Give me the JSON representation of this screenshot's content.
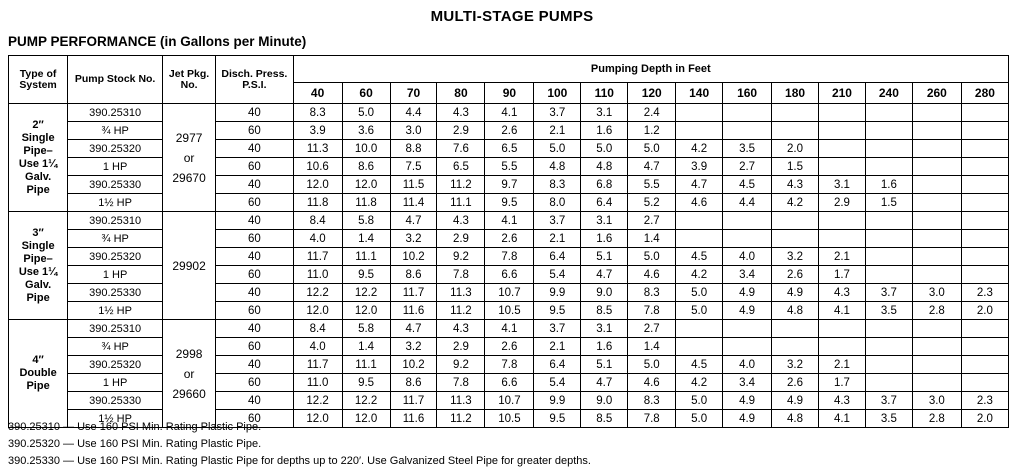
{
  "title": "MULTI-STAGE PUMPS",
  "subtitle": "PUMP PERFORMANCE (in Gallons per Minute)",
  "headers": {
    "type": "Type of System",
    "stock": "Pump Stock No.",
    "jet": "Jet Pkg. No.",
    "disch": "Disch. Press. P.S.I.",
    "depth_title": "Pumping Depth in Feet"
  },
  "depths": [
    "40",
    "60",
    "70",
    "80",
    "90",
    "100",
    "110",
    "120",
    "140",
    "160",
    "180",
    "210",
    "240",
    "260",
    "280"
  ],
  "groups": [
    {
      "system": [
        "2″",
        "Single",
        "Pipe–",
        "Use 1¼",
        "Galv.",
        "Pipe"
      ],
      "jet": [
        "2977",
        "or",
        "29670"
      ],
      "pumps": [
        {
          "stock": "390.25310",
          "hp": "¾ HP",
          "rows": [
            {
              "psi": "40",
              "values": [
                "8.3",
                "5.0",
                "4.4",
                "4.3",
                "4.1",
                "3.7",
                "3.1",
                "2.4",
                "",
                "",
                "",
                "",
                "",
                "",
                ""
              ]
            },
            {
              "psi": "60",
              "values": [
                "3.9",
                "3.6",
                "3.0",
                "2.9",
                "2.6",
                "2.1",
                "1.6",
                "1.2",
                "",
                "",
                "",
                "",
                "",
                "",
                ""
              ]
            }
          ]
        },
        {
          "stock": "390.25320",
          "hp": "1 HP",
          "rows": [
            {
              "psi": "40",
              "values": [
                "11.3",
                "10.0",
                "8.8",
                "7.6",
                "6.5",
                "5.0",
                "5.0",
                "5.0",
                "4.2",
                "3.5",
                "2.0",
                "",
                "",
                "",
                ""
              ]
            },
            {
              "psi": "60",
              "values": [
                "10.6",
                "8.6",
                "7.5",
                "6.5",
                "5.5",
                "4.8",
                "4.8",
                "4.7",
                "3.9",
                "2.7",
                "1.5",
                "",
                "",
                "",
                ""
              ]
            }
          ]
        },
        {
          "stock": "390.25330",
          "hp": "1½ HP",
          "rows": [
            {
              "psi": "40",
              "values": [
                "12.0",
                "12.0",
                "11.5",
                "11.2",
                "9.7",
                "8.3",
                "6.8",
                "5.5",
                "4.7",
                "4.5",
                "4.3",
                "3.1",
                "1.6",
                "",
                ""
              ]
            },
            {
              "psi": "60",
              "values": [
                "11.8",
                "11.8",
                "11.4",
                "11.1",
                "9.5",
                "8.0",
                "6.4",
                "5.2",
                "4.6",
                "4.4",
                "4.2",
                "2.9",
                "1.5",
                "",
                ""
              ]
            }
          ]
        }
      ]
    },
    {
      "system": [
        "3″",
        "Single",
        "Pipe–",
        "Use 1¼",
        "Galv.",
        "Pipe"
      ],
      "jet": [
        "29902"
      ],
      "pumps": [
        {
          "stock": "390.25310",
          "hp": "¾ HP",
          "rows": [
            {
              "psi": "40",
              "values": [
                "8.4",
                "5.8",
                "4.7",
                "4.3",
                "4.1",
                "3.7",
                "3.1",
                "2.7",
                "",
                "",
                "",
                "",
                "",
                "",
                ""
              ]
            },
            {
              "psi": "60",
              "values": [
                "4.0",
                "1.4",
                "3.2",
                "2.9",
                "2.6",
                "2.1",
                "1.6",
                "1.4",
                "",
                "",
                "",
                "",
                "",
                "",
                ""
              ]
            }
          ]
        },
        {
          "stock": "390.25320",
          "hp": "1 HP",
          "rows": [
            {
              "psi": "40",
              "values": [
                "11.7",
                "11.1",
                "10.2",
                "9.2",
                "7.8",
                "6.4",
                "5.1",
                "5.0",
                "4.5",
                "4.0",
                "3.2",
                "2.1",
                "",
                "",
                ""
              ]
            },
            {
              "psi": "60",
              "values": [
                "11.0",
                "9.5",
                "8.6",
                "7.8",
                "6.6",
                "5.4",
                "4.7",
                "4.6",
                "4.2",
                "3.4",
                "2.6",
                "1.7",
                "",
                "",
                ""
              ]
            }
          ]
        },
        {
          "stock": "390.25330",
          "hp": "1½ HP",
          "rows": [
            {
              "psi": "40",
              "values": [
                "12.2",
                "12.2",
                "11.7",
                "11.3",
                "10.7",
                "9.9",
                "9.0",
                "8.3",
                "5.0",
                "4.9",
                "4.9",
                "4.3",
                "3.7",
                "3.0",
                "2.3"
              ]
            },
            {
              "psi": "60",
              "values": [
                "12.0",
                "12.0",
                "11.6",
                "11.2",
                "10.5",
                "9.5",
                "8.5",
                "7.8",
                "5.0",
                "4.9",
                "4.8",
                "4.1",
                "3.5",
                "2.8",
                "2.0"
              ]
            }
          ]
        }
      ]
    },
    {
      "system": [
        "4″",
        "Double",
        "Pipe"
      ],
      "jet": [
        "2998",
        "or",
        "29660"
      ],
      "pumps": [
        {
          "stock": "390.25310",
          "hp": "¾ HP",
          "rows": [
            {
              "psi": "40",
              "values": [
                "8.4",
                "5.8",
                "4.7",
                "4.3",
                "4.1",
                "3.7",
                "3.1",
                "2.7",
                "",
                "",
                "",
                "",
                "",
                "",
                ""
              ]
            },
            {
              "psi": "60",
              "values": [
                "4.0",
                "1.4",
                "3.2",
                "2.9",
                "2.6",
                "2.1",
                "1.6",
                "1.4",
                "",
                "",
                "",
                "",
                "",
                "",
                ""
              ]
            }
          ]
        },
        {
          "stock": "390.25320",
          "hp": "1 HP",
          "rows": [
            {
              "psi": "40",
              "values": [
                "11.7",
                "11.1",
                "10.2",
                "9.2",
                "7.8",
                "6.4",
                "5.1",
                "5.0",
                "4.5",
                "4.0",
                "3.2",
                "2.1",
                "",
                "",
                ""
              ]
            },
            {
              "psi": "60",
              "values": [
                "11.0",
                "9.5",
                "8.6",
                "7.8",
                "6.6",
                "5.4",
                "4.7",
                "4.6",
                "4.2",
                "3.4",
                "2.6",
                "1.7",
                "",
                "",
                ""
              ]
            }
          ]
        },
        {
          "stock": "390.25330",
          "hp": "1½ HP",
          "rows": [
            {
              "psi": "40",
              "values": [
                "12.2",
                "12.2",
                "11.7",
                "11.3",
                "10.7",
                "9.9",
                "9.0",
                "8.3",
                "5.0",
                "4.9",
                "4.9",
                "4.3",
                "3.7",
                "3.0",
                "2.3"
              ]
            },
            {
              "psi": "60",
              "values": [
                "12.0",
                "12.0",
                "11.6",
                "11.2",
                "10.5",
                "9.5",
                "8.5",
                "7.8",
                "5.0",
                "4.9",
                "4.8",
                "4.1",
                "3.5",
                "2.8",
                "2.0"
              ]
            }
          ]
        }
      ]
    }
  ],
  "notes": [
    "390.25310 — Use 160 PSI Min. Rating Plastic Pipe.",
    "390.25320 — Use 160 PSI Min. Rating Plastic Pipe.",
    "390.25330 — Use 160 PSI Min. Rating Plastic Pipe for depths up to 220′. Use Galvanized Steel Pipe for greater depths."
  ]
}
